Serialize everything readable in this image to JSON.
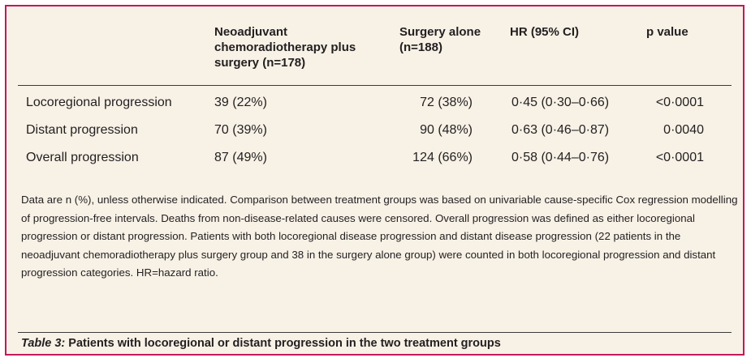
{
  "table": {
    "headers": [
      "Neoadjuvant chemoradiotherapy plus surgery (n=178)",
      "Surgery alone (n=188)",
      "HR (95% CI)",
      "p value"
    ],
    "rows": [
      {
        "label": "Locoregional progression",
        "neo": "39 (22%)",
        "surgery": "72 (38%)",
        "hr": "0·45 (0·30–0·66)",
        "p": "<0·0001"
      },
      {
        "label": "Distant progression",
        "neo": "70 (39%)",
        "surgery": "90 (48%)",
        "hr": "0·63 (0·46–0·87)",
        "p": "0·0040"
      },
      {
        "label": "Overall progression",
        "neo": "87 (49%)",
        "surgery": "124 (66%)",
        "hr": "0·58 (0·44–0·76)",
        "p": "<0·0001"
      }
    ]
  },
  "footnote": "Data are n (%), unless otherwise indicated. Comparison between treatment groups was based on univariable cause-specific Cox regression modelling of progression-free intervals. Deaths from non-disease-related causes were censored. Overall progression was defined as either locoregional progression or distant progression. Patients with both locoregional disease progression and distant disease progression (22 patients in the neoadjuvant chemoradiotherapy plus surgery group and 38 in the surgery alone group) were counted in both locoregional progression and distant progression categories. HR=hazard ratio.",
  "caption": {
    "label": "Table 3:",
    "title": "Patients with locoregional or distant progression in the two treatment groups"
  },
  "colors": {
    "border": "#c2185b",
    "background": "#f7f1e6"
  }
}
